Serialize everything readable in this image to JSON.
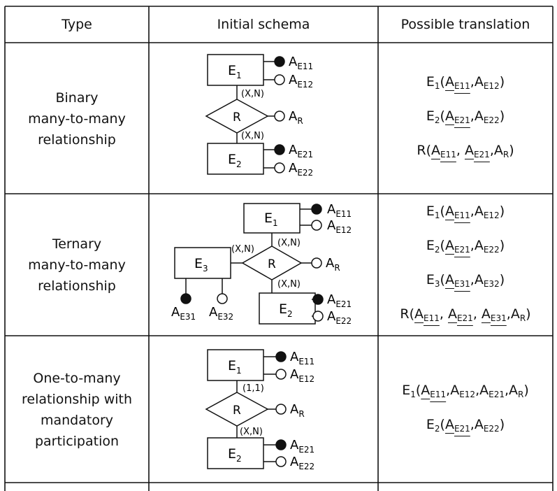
{
  "table": {
    "headers": [
      "Type",
      "Initial schema",
      "Possible translation"
    ],
    "rows": [
      {
        "type_lines": [
          "Binary",
          "many-to-many",
          "relationship"
        ],
        "schema": {
          "entities": [
            {
              "label": "E",
              "sub": "1",
              "attrs": [
                {
                  "label": "A",
                  "sub": "E11",
                  "identifier": true
                },
                {
                  "label": "A",
                  "sub": "E12",
                  "identifier": false
                }
              ]
            },
            {
              "label": "E",
              "sub": "2",
              "attrs": [
                {
                  "label": "A",
                  "sub": "E21",
                  "identifier": true
                },
                {
                  "label": "A",
                  "sub": "E22",
                  "identifier": false
                }
              ]
            }
          ],
          "relationship": {
            "label": "R",
            "attr": {
              "label": "A",
              "sub": "R"
            }
          },
          "cardinalities": [
            "(X,N)",
            "(X,N)"
          ]
        },
        "translation": [
          [
            {
              "t": "E"
            },
            {
              "t": "1",
              "sub": true
            },
            {
              "t": "("
            },
            {
              "t": "A",
              "u": true
            },
            {
              "t": "E11",
              "sub": true,
              "u": true
            },
            {
              "t": ",A"
            },
            {
              "t": "E12",
              "sub": true
            },
            {
              "t": ")"
            }
          ],
          [
            {
              "t": "E"
            },
            {
              "t": "2",
              "sub": true
            },
            {
              "t": "("
            },
            {
              "t": "A",
              "u": true
            },
            {
              "t": "E21",
              "sub": true,
              "u": true
            },
            {
              "t": ",A"
            },
            {
              "t": "E22",
              "sub": true
            },
            {
              "t": ")"
            }
          ],
          [
            {
              "t": "R("
            },
            {
              "t": "A",
              "u": true
            },
            {
              "t": "E11",
              "sub": true,
              "u": true
            },
            {
              "t": ", "
            },
            {
              "t": "A",
              "u": true
            },
            {
              "t": "E21",
              "sub": true,
              "u": true
            },
            {
              "t": ",A"
            },
            {
              "t": "R",
              "sub": true
            },
            {
              "t": ")"
            }
          ]
        ]
      },
      {
        "type_lines": [
          "Ternary",
          "many-to-many",
          "relationship"
        ],
        "schema": {
          "entities": [
            {
              "label": "E",
              "sub": "1",
              "attrs": [
                {
                  "label": "A",
                  "sub": "E11",
                  "identifier": true
                },
                {
                  "label": "A",
                  "sub": "E12",
                  "identifier": false
                }
              ]
            },
            {
              "label": "E",
              "sub": "2",
              "attrs": [
                {
                  "label": "A",
                  "sub": "E21",
                  "identifier": true
                },
                {
                  "label": "A",
                  "sub": "E22",
                  "identifier": false
                }
              ]
            },
            {
              "label": "E",
              "sub": "3",
              "attrs": [
                {
                  "label": "A",
                  "sub": "E31",
                  "identifier": true
                },
                {
                  "label": "A",
                  "sub": "E32",
                  "identifier": false
                }
              ]
            }
          ],
          "relationship": {
            "label": "R",
            "attr": {
              "label": "A",
              "sub": "R"
            }
          },
          "cardinalities": [
            "(X,N)",
            "(X,N)",
            "(X,N)"
          ]
        },
        "translation": [
          [
            {
              "t": "E"
            },
            {
              "t": "1",
              "sub": true
            },
            {
              "t": "("
            },
            {
              "t": "A",
              "u": true
            },
            {
              "t": "E11",
              "sub": true,
              "u": true
            },
            {
              "t": ",A"
            },
            {
              "t": "E12",
              "sub": true
            },
            {
              "t": ")"
            }
          ],
          [
            {
              "t": "E"
            },
            {
              "t": "2",
              "sub": true
            },
            {
              "t": "("
            },
            {
              "t": "A",
              "u": true
            },
            {
              "t": "E21",
              "sub": true,
              "u": true
            },
            {
              "t": ",A"
            },
            {
              "t": "E22",
              "sub": true
            },
            {
              "t": ")"
            }
          ],
          [
            {
              "t": "E"
            },
            {
              "t": "3",
              "sub": true
            },
            {
              "t": "("
            },
            {
              "t": "A",
              "u": true
            },
            {
              "t": "E31",
              "sub": true,
              "u": true
            },
            {
              "t": ",A"
            },
            {
              "t": "E32",
              "sub": true
            },
            {
              "t": ")"
            }
          ],
          [
            {
              "t": "R("
            },
            {
              "t": "A",
              "u": true
            },
            {
              "t": "E11",
              "sub": true,
              "u": true
            },
            {
              "t": ", "
            },
            {
              "t": "A",
              "u": true
            },
            {
              "t": "E21",
              "sub": true,
              "u": true
            },
            {
              "t": ", "
            },
            {
              "t": "A",
              "u": true
            },
            {
              "t": "E31",
              "sub": true,
              "u": true
            },
            {
              "t": ",A"
            },
            {
              "t": "R",
              "sub": true
            },
            {
              "t": ")"
            }
          ]
        ]
      },
      {
        "type_lines": [
          "One-to-many",
          "relationship with",
          "mandatory",
          "participation"
        ],
        "schema": {
          "entities": [
            {
              "label": "E",
              "sub": "1",
              "attrs": [
                {
                  "label": "A",
                  "sub": "E11",
                  "identifier": true
                },
                {
                  "label": "A",
                  "sub": "E12",
                  "identifier": false
                }
              ]
            },
            {
              "label": "E",
              "sub": "2",
              "attrs": [
                {
                  "label": "A",
                  "sub": "E21",
                  "identifier": true
                },
                {
                  "label": "A",
                  "sub": "E22",
                  "identifier": false
                }
              ]
            }
          ],
          "relationship": {
            "label": "R",
            "attr": {
              "label": "A",
              "sub": "R"
            }
          },
          "cardinalities": [
            "(1,1)",
            "(X,N)"
          ]
        },
        "translation": [
          [
            {
              "t": "E"
            },
            {
              "t": "1",
              "sub": true
            },
            {
              "t": "("
            },
            {
              "t": "A",
              "u": true
            },
            {
              "t": "E11",
              "sub": true,
              "u": true
            },
            {
              "t": ",A"
            },
            {
              "t": "E12",
              "sub": true
            },
            {
              "t": ",A"
            },
            {
              "t": "E21",
              "sub": true
            },
            {
              "t": ",A"
            },
            {
              "t": "R",
              "sub": true
            },
            {
              "t": ")"
            }
          ],
          [
            {
              "t": "E"
            },
            {
              "t": "2",
              "sub": true
            },
            {
              "t": "("
            },
            {
              "t": "A",
              "u": true
            },
            {
              "t": "E21",
              "sub": true,
              "u": true
            },
            {
              "t": ",A"
            },
            {
              "t": "E22",
              "sub": true
            },
            {
              "t": ")"
            }
          ]
        ]
      }
    ]
  },
  "colors": {
    "line": "#111111",
    "background": "#ffffff"
  }
}
